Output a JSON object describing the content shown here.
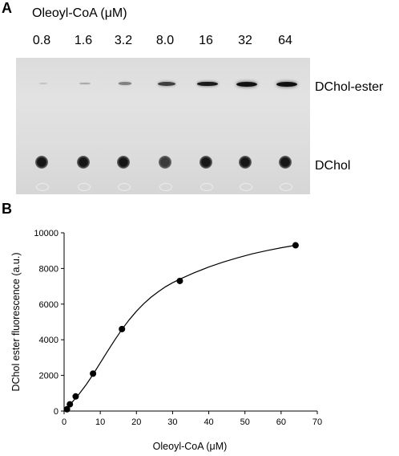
{
  "panel_a": {
    "letter": "A",
    "header": "Oleoyl-CoA (μM)",
    "lanes": [
      "0.8",
      "1.6",
      "3.2",
      "8.0",
      "16",
      "32",
      "64"
    ],
    "band_labels": {
      "ester": "DChol-ester",
      "dchol": "DChol"
    },
    "ester_band_intensity": [
      0.05,
      0.2,
      0.4,
      0.75,
      0.95,
      1.0,
      1.0
    ]
  },
  "panel_b": {
    "letter": "B"
  },
  "chart_data": {
    "type": "scatter",
    "title": "",
    "xlabel": "Oleoyl-CoA (μM)",
    "ylabel": "DChol ester fluorescence (a.u.)",
    "xlim": [
      0,
      70
    ],
    "ylim": [
      0,
      10000
    ],
    "xticks": [
      0,
      10,
      20,
      30,
      40,
      50,
      60,
      70
    ],
    "yticks": [
      0,
      2000,
      4000,
      6000,
      8000,
      10000
    ],
    "points": [
      {
        "x": 0.8,
        "y": 100
      },
      {
        "x": 1.6,
        "y": 380
      },
      {
        "x": 3.2,
        "y": 820
      },
      {
        "x": 8.0,
        "y": 2100
      },
      {
        "x": 16,
        "y": 4600
      },
      {
        "x": 32,
        "y": 7300
      },
      {
        "x": 64,
        "y": 9300
      }
    ],
    "fit_curve": {
      "x": [
        0,
        2,
        4,
        6,
        8,
        10,
        12,
        14,
        16,
        18,
        20,
        22,
        24,
        26,
        28,
        30,
        32,
        36,
        40,
        44,
        48,
        52,
        56,
        60,
        64
      ],
      "y": [
        0,
        440,
        920,
        1450,
        2050,
        2700,
        3350,
        3980,
        4580,
        5120,
        5600,
        6020,
        6380,
        6690,
        6970,
        7200,
        7400,
        7760,
        8080,
        8360,
        8600,
        8820,
        9000,
        9160,
        9300
      ]
    },
    "grid": false,
    "legend": "none"
  }
}
